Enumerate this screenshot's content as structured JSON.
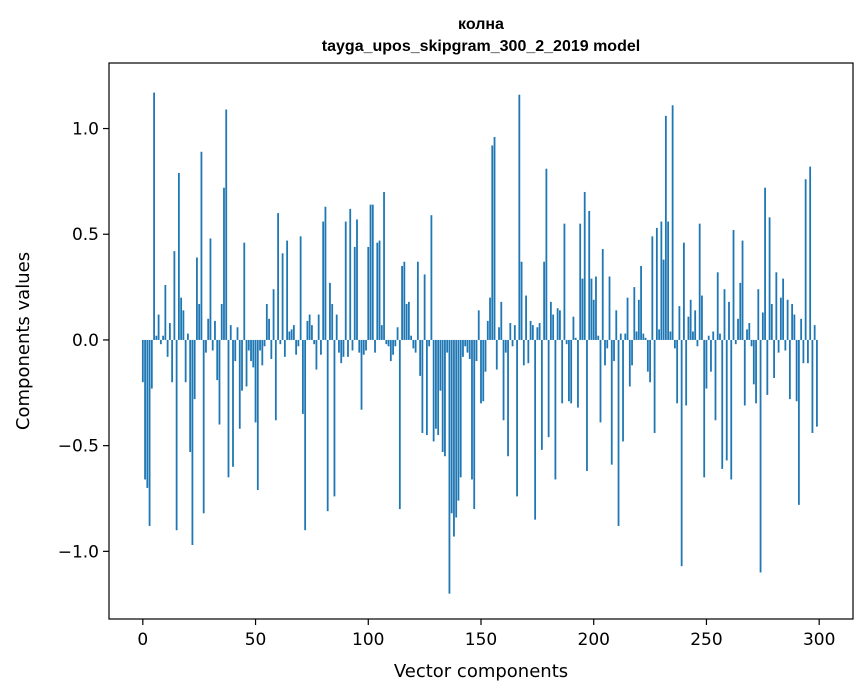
{
  "chart_data": {
    "type": "bar",
    "title_line1": "колна",
    "title_line2": "tayga_upos_skipgram_300_2_2019 model",
    "xlabel": "Vector components",
    "ylabel": "Components values",
    "xlim": [
      -15,
      315
    ],
    "ylim": [
      -1.32,
      1.31
    ],
    "xticks": [
      0,
      50,
      100,
      150,
      200,
      250,
      300
    ],
    "xtick_labels": [
      "0",
      "50",
      "100",
      "150",
      "200",
      "250",
      "300"
    ],
    "yticks": [
      -1.0,
      -0.5,
      0.0,
      0.5,
      1.0
    ],
    "ytick_labels": [
      "−1.0",
      "−0.5",
      "0.0",
      "0.5",
      "1.0"
    ],
    "bar_color": "#1f77b4",
    "values": [
      -0.2,
      -0.66,
      -0.7,
      -0.88,
      -0.23,
      1.17,
      0.02,
      0.12,
      -0.02,
      0.02,
      0.26,
      -0.08,
      0.08,
      -0.2,
      0.42,
      -0.9,
      0.79,
      0.2,
      0.14,
      -0.2,
      0.03,
      -0.53,
      -0.97,
      -0.28,
      0.39,
      0.17,
      0.89,
      -0.82,
      -0.06,
      0.1,
      0.48,
      -0.05,
      0.09,
      -0.19,
      -0.4,
      0.17,
      0.72,
      1.09,
      -0.65,
      0.07,
      -0.6,
      -0.1,
      0.06,
      -0.42,
      -0.24,
      0.46,
      -0.22,
      -0.05,
      -0.1,
      -0.13,
      -0.39,
      -0.71,
      -0.05,
      -0.12,
      -0.03,
      0.17,
      0.1,
      -0.09,
      0.24,
      -0.38,
      0.6,
      -0.02,
      0.41,
      -0.08,
      0.47,
      0.04,
      0.05,
      0.07,
      -0.07,
      -0.03,
      0.49,
      -0.35,
      -0.9,
      0.09,
      0.12,
      0.07,
      -0.02,
      -0.14,
      0.12,
      -0.07,
      0.56,
      0.63,
      -0.81,
      0.27,
      0.17,
      -0.74,
      0.12,
      -0.06,
      -0.11,
      -0.08,
      0.56,
      -0.08,
      0.62,
      -0.05,
      0.44,
      0.57,
      -0.06,
      -0.33,
      -0.07,
      -0.05,
      0.44,
      0.64,
      0.64,
      -0.06,
      0.46,
      0.47,
      0.07,
      0.7,
      -0.02,
      -0.03,
      -0.1,
      -0.07,
      -0.03,
      0.06,
      -0.8,
      0.35,
      0.37,
      0.17,
      0.18,
      0.02,
      -0.04,
      -0.06,
      0.37,
      -0.17,
      -0.44,
      0.31,
      -0.45,
      -0.03,
      0.59,
      -0.48,
      -0.42,
      -0.45,
      -0.24,
      -0.53,
      -0.55,
      -0.06,
      -1.2,
      -0.82,
      -0.93,
      -0.84,
      -0.76,
      -0.65,
      -0.08,
      -0.03,
      -0.06,
      -0.09,
      -0.66,
      -0.8,
      -0.1,
      0.14,
      -0.3,
      -0.29,
      -0.15,
      0.09,
      0.2,
      0.92,
      0.96,
      -0.14,
      0.06,
      0.18,
      -0.38,
      -0.06,
      -0.55,
      0.08,
      -0.03,
      0.07,
      -0.74,
      1.16,
      0.37,
      -0.12,
      0.21,
      -0.11,
      0.09,
      0.07,
      -0.85,
      0.06,
      0.08,
      -0.52,
      0.37,
      0.81,
      -0.46,
      0.18,
      0.12,
      -0.66,
      0.15,
      0.14,
      -0.3,
      0.55,
      -0.02,
      -0.29,
      -0.3,
      0.11,
      0.01,
      -0.32,
      0.55,
      0.29,
      0.7,
      -0.62,
      0.61,
      0.29,
      0.19,
      0.3,
      0.02,
      -0.39,
      0.43,
      -0.12,
      -0.04,
      0.3,
      -0.59,
      -0.1,
      0.14,
      -0.88,
      0.03,
      -0.48,
      0.03,
      0.2,
      -0.22,
      -0.12,
      0.25,
      0.04,
      0.19,
      0.35,
      0.03,
      0.01,
      -0.15,
      -0.2,
      0.49,
      -0.44,
      0.53,
      0.05,
      0.56,
      0.38,
      1.06,
      0.56,
      0.04,
      1.11,
      -0.04,
      -0.3,
      0.16,
      -1.07,
      0.46,
      -0.31,
      0.11,
      0.19,
      0.04,
      0.14,
      -0.03,
      0.55,
      0.21,
      -0.65,
      -0.23,
      0.02,
      -0.15,
      0.04,
      -0.38,
      0.32,
      0.03,
      -0.61,
      0.24,
      -0.57,
      0.18,
      -0.66,
      0.52,
      -0.02,
      0.1,
      0.27,
      0.47,
      -0.31,
      0.05,
      0.08,
      -0.03,
      -0.21,
      -0.3,
      0.24,
      -1.1,
      0.13,
      0.72,
      -0.26,
      0.58,
      0.17,
      -0.18,
      0.32,
      -0.06,
      0.2,
      0.29,
      -0.05,
      0.19,
      -0.28,
      0.17,
      0.12,
      -0.29,
      -0.78,
      0.1,
      -0.11,
      0.76,
      -0.11,
      0.82,
      -0.44,
      0.07,
      -0.41
    ]
  }
}
